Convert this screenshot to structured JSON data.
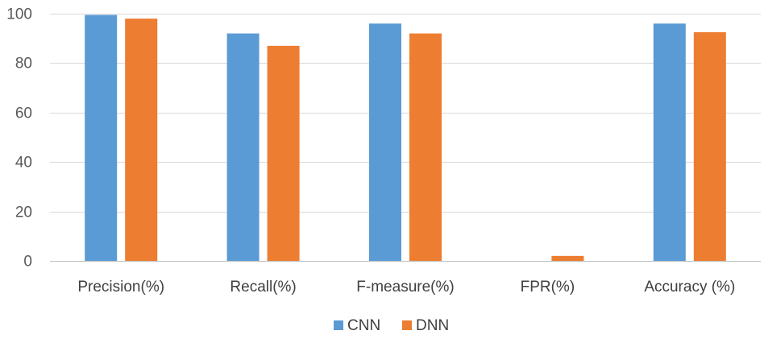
{
  "chart_data": {
    "type": "bar",
    "categories": [
      "Precision(%)",
      "Recall(%)",
      "F-measure(%)",
      "FPR(%)",
      "Accuracy (%)"
    ],
    "series": [
      {
        "name": "CNN",
        "color": "#5b9bd5",
        "values": [
          99.5,
          92,
          96,
          0,
          96
        ]
      },
      {
        "name": "DNN",
        "color": "#ed7d31",
        "values": [
          98,
          87,
          92,
          2,
          92.5
        ]
      }
    ],
    "yticks": [
      0,
      20,
      40,
      60,
      80,
      100
    ],
    "ylim": [
      0,
      100
    ],
    "grid": true,
    "legend_position": "bottom"
  }
}
